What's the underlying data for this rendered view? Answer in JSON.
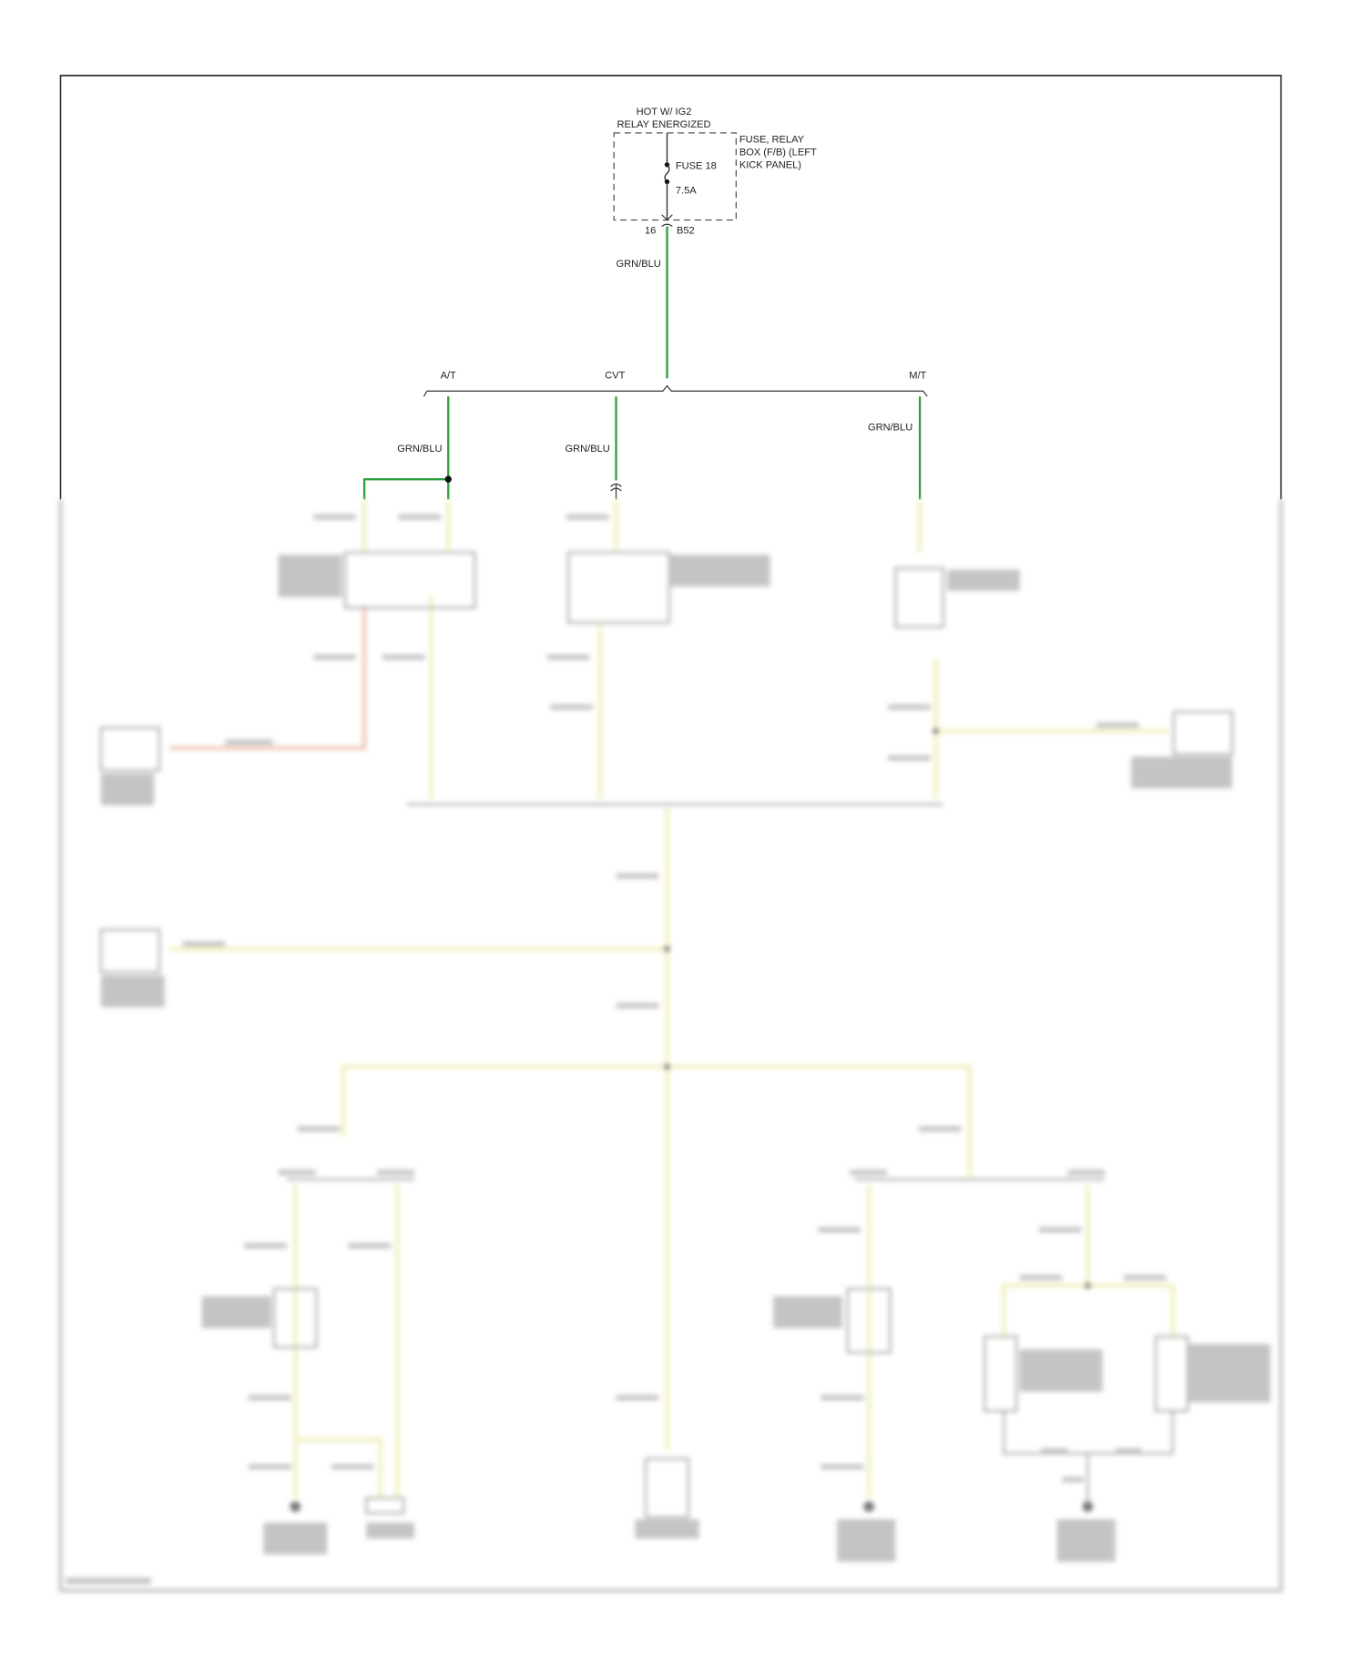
{
  "diagram": {
    "power_source": {
      "line1": "HOT W/ IG2",
      "line2": "RELAY ENERGIZED"
    },
    "fuse_box": {
      "line1": "FUSE, RELAY",
      "line2": "BOX (F/B) (LEFT",
      "line3": "KICK PANEL)"
    },
    "fuse": {
      "name": "FUSE 18",
      "rating": "7.5A"
    },
    "connector": {
      "pin": "16",
      "name": "B52"
    },
    "main_wire": "GRN/BLU",
    "branches": [
      {
        "label": "A/T",
        "wire": "GRN/BLU"
      },
      {
        "label": "CVT",
        "wire": "GRN/BLU"
      },
      {
        "label": "M/T",
        "wire": "GRN/BLU"
      }
    ],
    "colors": {
      "grn_blu": "#2e9e3e",
      "frame": "#222222",
      "yellow_wire": "#f2f0c2",
      "pink_wire": "#f3c9b8"
    }
  }
}
